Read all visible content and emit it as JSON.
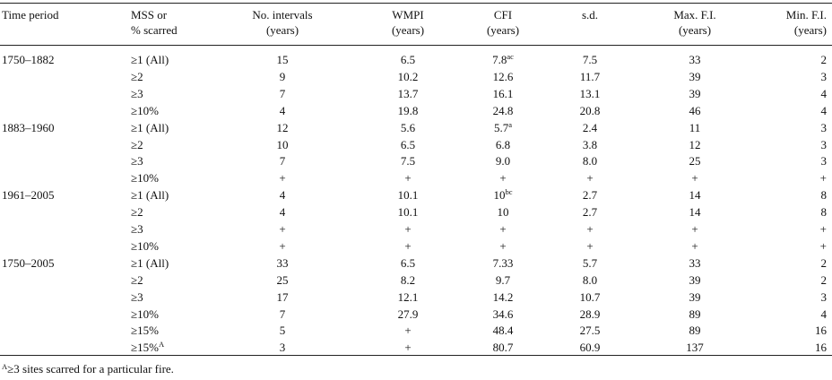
{
  "headers": [
    {
      "line1": "Time period",
      "line2": ""
    },
    {
      "line1": "MSS or",
      "line2": "% scarred"
    },
    {
      "line1": "No. intervals",
      "line2": "(years)"
    },
    {
      "line1": "WMPI",
      "line2": "(years)"
    },
    {
      "line1": "CFI",
      "line2": "(years)"
    },
    {
      "line1": "s.d.",
      "line2": ""
    },
    {
      "line1": "Max. F.I.",
      "line2": "(years)"
    },
    {
      "line1": "Min. F.I.",
      "line2": "(years)"
    }
  ],
  "rows": [
    {
      "period": "1750–1882",
      "mss": "≥1 (All)",
      "mss_sup": "",
      "n": "15",
      "wmpi": "6.5",
      "cfi": "7.8",
      "cfi_sup": "ac",
      "sd": "7.5",
      "max": "33",
      "min": "2"
    },
    {
      "period": "",
      "mss": "≥2",
      "mss_sup": "",
      "n": "9",
      "wmpi": "10.2",
      "cfi": "12.6",
      "cfi_sup": "",
      "sd": "11.7",
      "max": "39",
      "min": "3"
    },
    {
      "period": "",
      "mss": "≥3",
      "mss_sup": "",
      "n": "7",
      "wmpi": "13.7",
      "cfi": "16.1",
      "cfi_sup": "",
      "sd": "13.1",
      "max": "39",
      "min": "4"
    },
    {
      "period": "",
      "mss": "≥10%",
      "mss_sup": "",
      "n": "4",
      "wmpi": "19.8",
      "cfi": "24.8",
      "cfi_sup": "",
      "sd": "20.8",
      "max": "46",
      "min": "4"
    },
    {
      "period": "1883–1960",
      "mss": "≥1 (All)",
      "mss_sup": "",
      "n": "12",
      "wmpi": "5.6",
      "cfi": "5.7",
      "cfi_sup": "a",
      "sd": "2.4",
      "max": "11",
      "min": "3"
    },
    {
      "period": "",
      "mss": "≥2",
      "mss_sup": "",
      "n": "10",
      "wmpi": "6.5",
      "cfi": "6.8",
      "cfi_sup": "",
      "sd": "3.8",
      "max": "12",
      "min": "3"
    },
    {
      "period": "",
      "mss": "≥3",
      "mss_sup": "",
      "n": "7",
      "wmpi": "7.5",
      "cfi": "9.0",
      "cfi_sup": "",
      "sd": "8.0",
      "max": "25",
      "min": "3"
    },
    {
      "period": "",
      "mss": "≥10%",
      "mss_sup": "",
      "n": "+",
      "wmpi": "+",
      "cfi": "+",
      "cfi_sup": "",
      "sd": "+",
      "max": "+",
      "min": "+"
    },
    {
      "period": "1961–2005",
      "mss": "≥1 (All)",
      "mss_sup": "",
      "n": "4",
      "wmpi": "10.1",
      "cfi": "10",
      "cfi_sup": "bc",
      "sd": "2.7",
      "max": "14",
      "min": "8"
    },
    {
      "period": "",
      "mss": "≥2",
      "mss_sup": "",
      "n": "4",
      "wmpi": "10.1",
      "cfi": "10",
      "cfi_sup": "",
      "sd": "2.7",
      "max": "14",
      "min": "8"
    },
    {
      "period": "",
      "mss": "≥3",
      "mss_sup": "",
      "n": "+",
      "wmpi": "+",
      "cfi": "+",
      "cfi_sup": "",
      "sd": "+",
      "max": "+",
      "min": "+"
    },
    {
      "period": "",
      "mss": "≥10%",
      "mss_sup": "",
      "n": "+",
      "wmpi": "+",
      "cfi": "+",
      "cfi_sup": "",
      "sd": "+",
      "max": "+",
      "min": "+"
    },
    {
      "period": "1750–2005",
      "mss": "≥1 (All)",
      "mss_sup": "",
      "n": "33",
      "wmpi": "6.5",
      "cfi": "7.33",
      "cfi_sup": "",
      "sd": "5.7",
      "max": "33",
      "min": "2"
    },
    {
      "period": "",
      "mss": "≥2",
      "mss_sup": "",
      "n": "25",
      "wmpi": "8.2",
      "cfi": "9.7",
      "cfi_sup": "",
      "sd": "8.0",
      "max": "39",
      "min": "2"
    },
    {
      "period": "",
      "mss": "≥3",
      "mss_sup": "",
      "n": "17",
      "wmpi": "12.1",
      "cfi": "14.2",
      "cfi_sup": "",
      "sd": "10.7",
      "max": "39",
      "min": "3"
    },
    {
      "period": "",
      "mss": "≥10%",
      "mss_sup": "",
      "n": "7",
      "wmpi": "27.9",
      "cfi": "34.6",
      "cfi_sup": "",
      "sd": "28.9",
      "max": "89",
      "min": "4"
    },
    {
      "period": "",
      "mss": "≥15%",
      "mss_sup": "",
      "n": "5",
      "wmpi": "+",
      "cfi": "48.4",
      "cfi_sup": "",
      "sd": "27.5",
      "max": "89",
      "min": "16"
    },
    {
      "period": "",
      "mss": "≥15%",
      "mss_sup": "A",
      "n": "3",
      "wmpi": "+",
      "cfi": "80.7",
      "cfi_sup": "",
      "sd": "60.9",
      "max": "137",
      "min": "16"
    }
  ],
  "footnote": {
    "sup": "A",
    "text": "≥3 sites scarred for a particular fire."
  }
}
